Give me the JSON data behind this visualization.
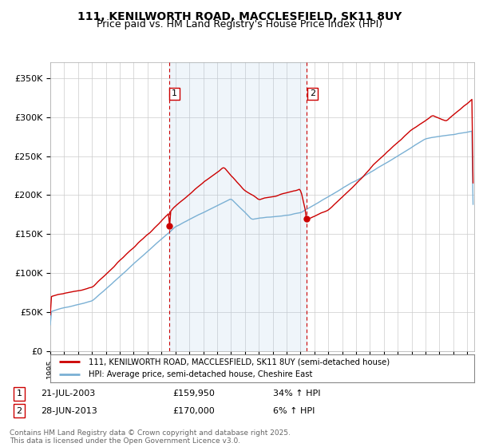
{
  "title_line1": "111, KENILWORTH ROAD, MACCLESFIELD, SK11 8UY",
  "title_line2": "Price paid vs. HM Land Registry's House Price Index (HPI)",
  "ylim": [
    0,
    370000
  ],
  "yticks": [
    0,
    50000,
    100000,
    150000,
    200000,
    250000,
    300000,
    350000
  ],
  "ytick_labels": [
    "£0",
    "£50K",
    "£100K",
    "£150K",
    "£200K",
    "£250K",
    "£300K",
    "£350K"
  ],
  "sale1_price": 159950,
  "sale2_price": 170000,
  "hpi_color": "#7ab0d4",
  "price_color": "#cc0000",
  "vline_color": "#cc0000",
  "shade_color": "#ddeeff",
  "background_color": "#ffffff",
  "grid_color": "#cccccc",
  "legend_line1": "111, KENILWORTH ROAD, MACCLESFIELD, SK11 8UY (semi-detached house)",
  "legend_line2": "HPI: Average price, semi-detached house, Cheshire East",
  "footer": "Contains HM Land Registry data © Crown copyright and database right 2025.\nThis data is licensed under the Open Government Licence v3.0.",
  "title_fontsize": 10,
  "subtitle_fontsize": 9
}
